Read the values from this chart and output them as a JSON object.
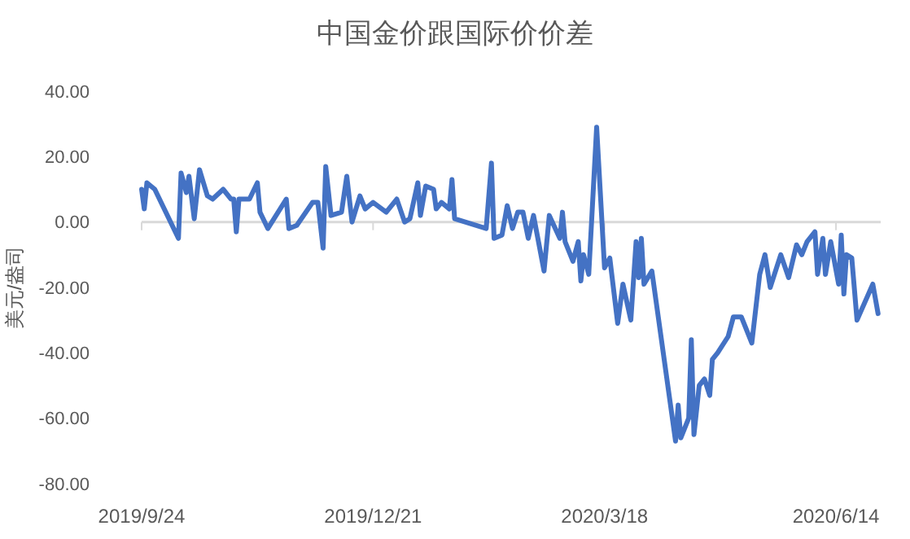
{
  "chart_data": {
    "type": "line",
    "title": "中国金价跟国际价价差",
    "ylabel": "美元/盎司",
    "xlim": [
      "2019-09-24",
      "2020-07-01"
    ],
    "xticks": [
      {
        "value": "2019-09-24",
        "label": "2019/9/24"
      },
      {
        "value": "2019-12-21",
        "label": "2019/12/21"
      },
      {
        "value": "2020-03-18",
        "label": "2020/3/18"
      },
      {
        "value": "2020-06-14",
        "label": "2020/6/14"
      }
    ],
    "ylim": [
      -80,
      40
    ],
    "yticks": [
      {
        "value": -80,
        "label": "-80.00"
      },
      {
        "value": -60,
        "label": "-60.00"
      },
      {
        "value": -40,
        "label": "-40.00"
      },
      {
        "value": -20,
        "label": "-20.00"
      },
      {
        "value": 0,
        "label": "0.00"
      },
      {
        "value": 20,
        "label": "20.00"
      },
      {
        "value": 40,
        "label": "40.00"
      }
    ],
    "marker": "none",
    "line_style": "solid",
    "x": [
      "2019-09-24",
      "2019-09-25",
      "2019-09-26",
      "2019-09-29",
      "2019-10-08",
      "2019-10-09",
      "2019-10-11",
      "2019-10-12",
      "2019-10-14",
      "2019-10-16",
      "2019-10-19",
      "2019-10-21",
      "2019-10-25",
      "2019-10-28",
      "2019-10-29",
      "2019-10-30",
      "2019-10-31",
      "2019-11-04",
      "2019-11-07",
      "2019-11-08",
      "2019-11-11",
      "2019-11-18",
      "2019-11-19",
      "2019-11-22",
      "2019-11-28",
      "2019-11-30",
      "2019-12-02",
      "2019-12-03",
      "2019-12-05",
      "2019-12-09",
      "2019-12-11",
      "2019-12-13",
      "2019-12-16",
      "2019-12-18",
      "2019-12-21",
      "2019-12-26",
      "2019-12-30",
      "2020-01-02",
      "2020-01-04",
      "2020-01-07",
      "2020-01-08",
      "2020-01-10",
      "2020-01-13",
      "2020-01-14",
      "2020-01-16",
      "2020-01-19",
      "2020-01-20",
      "2020-01-21",
      "2020-02-02",
      "2020-02-04",
      "2020-02-05",
      "2020-02-08",
      "2020-02-10",
      "2020-02-12",
      "2020-02-14",
      "2020-02-16",
      "2020-02-18",
      "2020-02-20",
      "2020-02-24",
      "2020-02-26",
      "2020-03-01",
      "2020-03-02",
      "2020-03-03",
      "2020-03-06",
      "2020-03-08",
      "2020-03-09",
      "2020-03-10",
      "2020-03-12",
      "2020-03-15",
      "2020-03-18",
      "2020-03-20",
      "2020-03-23",
      "2020-03-25",
      "2020-03-28",
      "2020-03-30",
      "2020-03-31",
      "2020-04-01",
      "2020-04-02",
      "2020-04-05",
      "2020-04-14",
      "2020-04-15",
      "2020-04-16",
      "2020-04-19",
      "2020-04-20",
      "2020-04-21",
      "2020-04-23",
      "2020-04-25",
      "2020-04-27",
      "2020-04-28",
      "2020-04-30",
      "2020-05-04",
      "2020-05-06",
      "2020-05-09",
      "2020-05-10",
      "2020-05-13",
      "2020-05-16",
      "2020-05-18",
      "2020-05-20",
      "2020-05-24",
      "2020-05-27",
      "2020-05-30",
      "2020-06-01",
      "2020-06-03",
      "2020-06-06",
      "2020-06-07",
      "2020-06-09",
      "2020-06-10",
      "2020-06-12",
      "2020-06-15",
      "2020-06-16",
      "2020-06-17",
      "2020-06-18",
      "2020-06-20",
      "2020-06-22",
      "2020-06-28",
      "2020-06-30"
    ],
    "series": [
      {
        "color": "#4472c4",
        "values": [
          10,
          4,
          12,
          10,
          -5,
          15,
          9,
          14,
          1,
          16,
          8,
          7,
          10,
          7,
          7,
          -3,
          7,
          7,
          12,
          3,
          -2,
          7,
          -2,
          -1,
          6,
          6,
          -8,
          17,
          2,
          3,
          14,
          0,
          8,
          4,
          6,
          3,
          7,
          0,
          1,
          12,
          2,
          11,
          10,
          4,
          6,
          4,
          13,
          1,
          -2,
          18,
          -5,
          -4,
          5,
          -2,
          3,
          3,
          -5,
          2,
          -15,
          2,
          -5,
          3,
          -6,
          -12,
          -6,
          -18,
          -10,
          -16,
          29,
          -14,
          -11,
          -31,
          -19,
          -30,
          -6,
          -17,
          -5,
          -19,
          -15,
          -67,
          -56,
          -66,
          -60,
          -36,
          -65,
          -50,
          -48,
          -53,
          -42,
          -40,
          -35,
          -29,
          -29,
          -31,
          -37,
          -16,
          -10,
          -20,
          -10,
          -17,
          -7,
          -10,
          -6,
          -3,
          -16,
          -5,
          -16,
          -6,
          -19,
          -4,
          -22,
          -10,
          -11,
          -30,
          -19,
          -28
        ]
      }
    ]
  }
}
